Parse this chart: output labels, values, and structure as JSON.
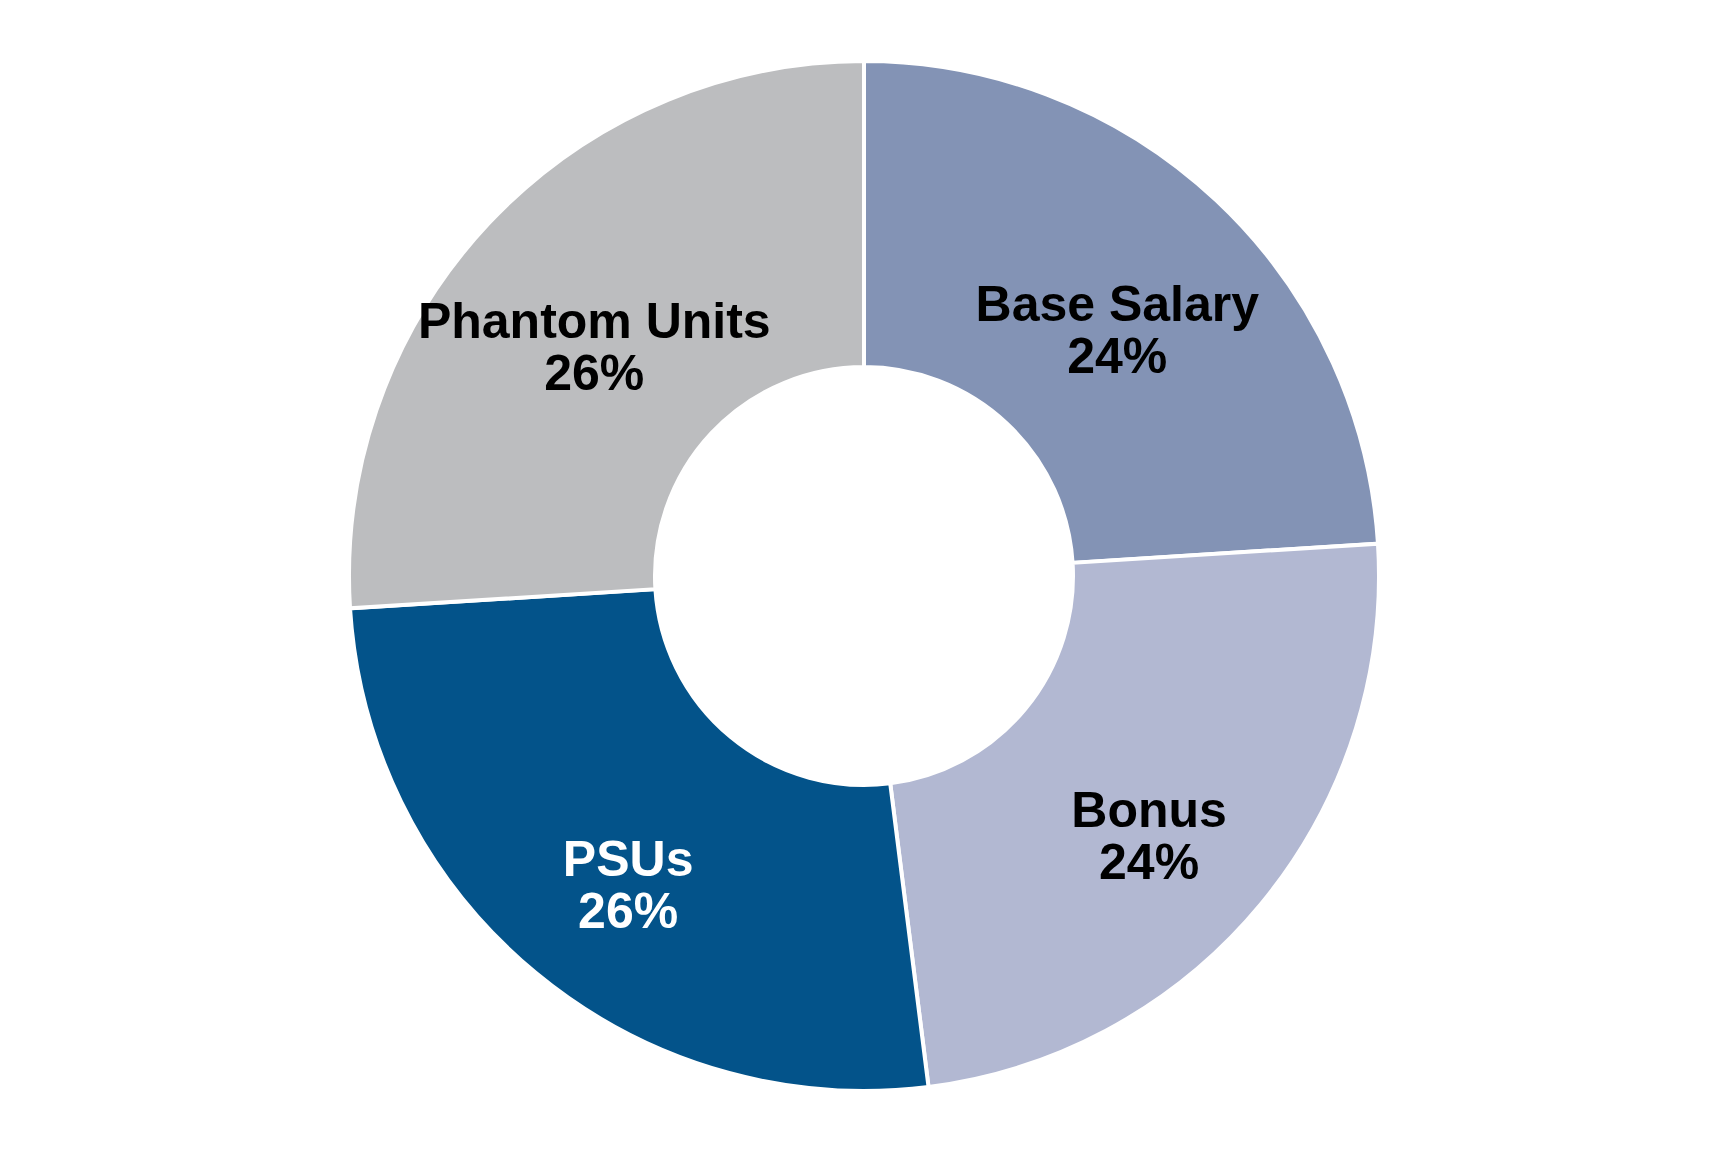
{
  "chart_data": {
    "type": "donut",
    "categories": [
      "Base Salary",
      "Bonus",
      "PSUs",
      "Phantom Units"
    ],
    "values": [
      24,
      24,
      26,
      26
    ],
    "value_labels": [
      "24%",
      "24%",
      "26%",
      "26%"
    ],
    "colors": [
      "#8393b5",
      "#b2b8d2",
      "#03538a",
      "#bcbdbf"
    ],
    "legend": false
  }
}
